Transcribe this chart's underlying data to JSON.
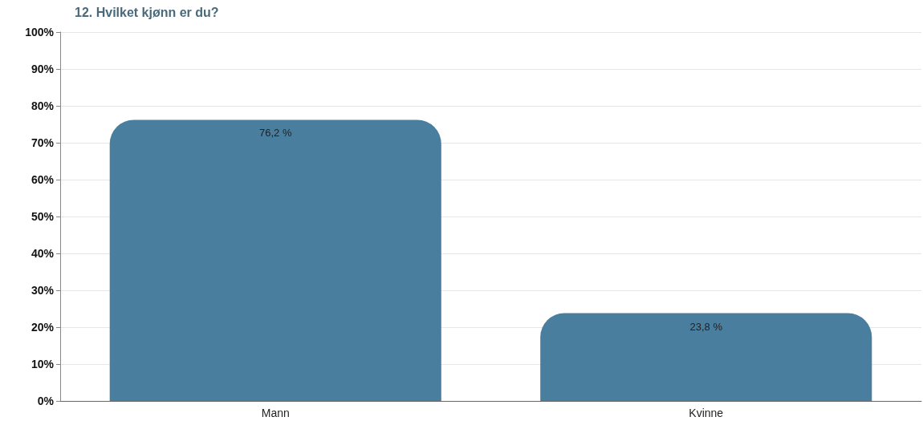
{
  "chart_data": {
    "type": "bar",
    "title": "12. Hvilket kjønn er du?",
    "categories": [
      "Mann",
      "Kvinne"
    ],
    "values": [
      76.2,
      23.8
    ],
    "value_labels": [
      "76,2 %",
      "23,8 %"
    ],
    "color": "#4a7e9e",
    "ylim": [
      0,
      100
    ],
    "yticks": [
      {
        "value": 0,
        "label": "0%"
      },
      {
        "value": 10,
        "label": "10%"
      },
      {
        "value": 20,
        "label": "20%"
      },
      {
        "value": 30,
        "label": "30%"
      },
      {
        "value": 40,
        "label": "40%"
      },
      {
        "value": 50,
        "label": "50%"
      },
      {
        "value": 60,
        "label": "60%"
      },
      {
        "value": 70,
        "label": "70%"
      },
      {
        "value": 80,
        "label": "80%"
      },
      {
        "value": 90,
        "label": "90%"
      },
      {
        "value": 100,
        "label": "100%"
      }
    ],
    "grid": "y"
  }
}
